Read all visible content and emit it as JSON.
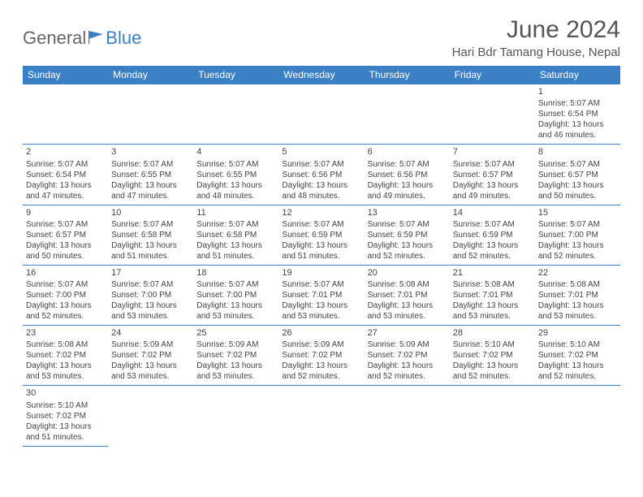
{
  "logo": {
    "part1": "General",
    "part2": "Blue"
  },
  "title": "June 2024",
  "location": "Hari Bdr Tamang House, Nepal",
  "weekdays": [
    "Sunday",
    "Monday",
    "Tuesday",
    "Wednesday",
    "Thursday",
    "Friday",
    "Saturday"
  ],
  "colors": {
    "accent": "#3b7fc4",
    "text": "#444444",
    "header_text": "#555555",
    "bg": "#ffffff"
  },
  "typography": {
    "title_fontsize": 30,
    "header_fontsize": 12,
    "cell_fontsize": 10
  },
  "layout": {
    "first_weekday_index": 6,
    "total_days": 30,
    "rows": 6,
    "cols": 7
  },
  "days": [
    {
      "n": 1,
      "sunrise": "5:07 AM",
      "sunset": "6:54 PM",
      "daylight": "13 hours and 46 minutes."
    },
    {
      "n": 2,
      "sunrise": "5:07 AM",
      "sunset": "6:54 PM",
      "daylight": "13 hours and 47 minutes."
    },
    {
      "n": 3,
      "sunrise": "5:07 AM",
      "sunset": "6:55 PM",
      "daylight": "13 hours and 47 minutes."
    },
    {
      "n": 4,
      "sunrise": "5:07 AM",
      "sunset": "6:55 PM",
      "daylight": "13 hours and 48 minutes."
    },
    {
      "n": 5,
      "sunrise": "5:07 AM",
      "sunset": "6:56 PM",
      "daylight": "13 hours and 48 minutes."
    },
    {
      "n": 6,
      "sunrise": "5:07 AM",
      "sunset": "6:56 PM",
      "daylight": "13 hours and 49 minutes."
    },
    {
      "n": 7,
      "sunrise": "5:07 AM",
      "sunset": "6:57 PM",
      "daylight": "13 hours and 49 minutes."
    },
    {
      "n": 8,
      "sunrise": "5:07 AM",
      "sunset": "6:57 PM",
      "daylight": "13 hours and 50 minutes."
    },
    {
      "n": 9,
      "sunrise": "5:07 AM",
      "sunset": "6:57 PM",
      "daylight": "13 hours and 50 minutes."
    },
    {
      "n": 10,
      "sunrise": "5:07 AM",
      "sunset": "6:58 PM",
      "daylight": "13 hours and 51 minutes."
    },
    {
      "n": 11,
      "sunrise": "5:07 AM",
      "sunset": "6:58 PM",
      "daylight": "13 hours and 51 minutes."
    },
    {
      "n": 12,
      "sunrise": "5:07 AM",
      "sunset": "6:59 PM",
      "daylight": "13 hours and 51 minutes."
    },
    {
      "n": 13,
      "sunrise": "5:07 AM",
      "sunset": "6:59 PM",
      "daylight": "13 hours and 52 minutes."
    },
    {
      "n": 14,
      "sunrise": "5:07 AM",
      "sunset": "6:59 PM",
      "daylight": "13 hours and 52 minutes."
    },
    {
      "n": 15,
      "sunrise": "5:07 AM",
      "sunset": "7:00 PM",
      "daylight": "13 hours and 52 minutes."
    },
    {
      "n": 16,
      "sunrise": "5:07 AM",
      "sunset": "7:00 PM",
      "daylight": "13 hours and 52 minutes."
    },
    {
      "n": 17,
      "sunrise": "5:07 AM",
      "sunset": "7:00 PM",
      "daylight": "13 hours and 53 minutes."
    },
    {
      "n": 18,
      "sunrise": "5:07 AM",
      "sunset": "7:00 PM",
      "daylight": "13 hours and 53 minutes."
    },
    {
      "n": 19,
      "sunrise": "5:07 AM",
      "sunset": "7:01 PM",
      "daylight": "13 hours and 53 minutes."
    },
    {
      "n": 20,
      "sunrise": "5:08 AM",
      "sunset": "7:01 PM",
      "daylight": "13 hours and 53 minutes."
    },
    {
      "n": 21,
      "sunrise": "5:08 AM",
      "sunset": "7:01 PM",
      "daylight": "13 hours and 53 minutes."
    },
    {
      "n": 22,
      "sunrise": "5:08 AM",
      "sunset": "7:01 PM",
      "daylight": "13 hours and 53 minutes."
    },
    {
      "n": 23,
      "sunrise": "5:08 AM",
      "sunset": "7:02 PM",
      "daylight": "13 hours and 53 minutes."
    },
    {
      "n": 24,
      "sunrise": "5:09 AM",
      "sunset": "7:02 PM",
      "daylight": "13 hours and 53 minutes."
    },
    {
      "n": 25,
      "sunrise": "5:09 AM",
      "sunset": "7:02 PM",
      "daylight": "13 hours and 53 minutes."
    },
    {
      "n": 26,
      "sunrise": "5:09 AM",
      "sunset": "7:02 PM",
      "daylight": "13 hours and 52 minutes."
    },
    {
      "n": 27,
      "sunrise": "5:09 AM",
      "sunset": "7:02 PM",
      "daylight": "13 hours and 52 minutes."
    },
    {
      "n": 28,
      "sunrise": "5:10 AM",
      "sunset": "7:02 PM",
      "daylight": "13 hours and 52 minutes."
    },
    {
      "n": 29,
      "sunrise": "5:10 AM",
      "sunset": "7:02 PM",
      "daylight": "13 hours and 52 minutes."
    },
    {
      "n": 30,
      "sunrise": "5:10 AM",
      "sunset": "7:02 PM",
      "daylight": "13 hours and 51 minutes."
    }
  ],
  "labels": {
    "sunrise": "Sunrise: ",
    "sunset": "Sunset: ",
    "daylight": "Daylight: "
  }
}
